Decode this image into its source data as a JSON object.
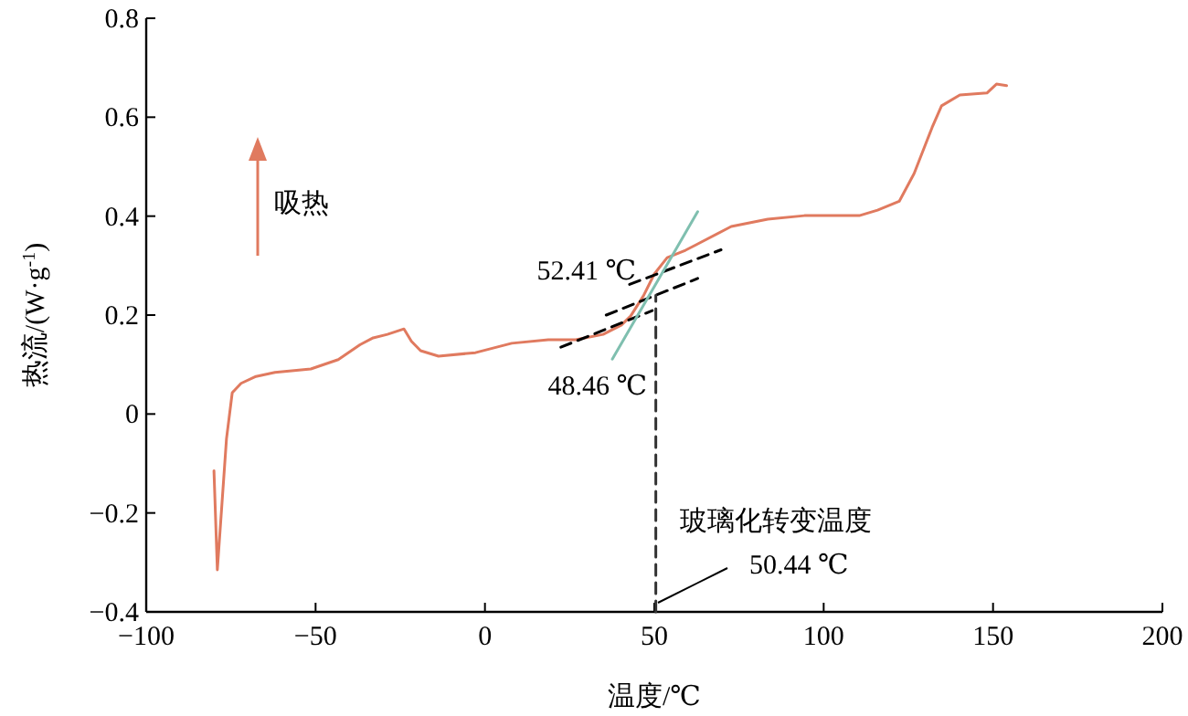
{
  "chart_data": {
    "type": "line",
    "xlabel": "温度/℃",
    "ylabel": "热流/(W·g$^{-1}$)",
    "xlim": [
      -100,
      200
    ],
    "xticks": [
      {
        "value": -100,
        "label": "−100"
      },
      {
        "value": -50,
        "label": "−50"
      },
      0,
      50,
      100,
      150,
      200
    ],
    "ylim": [
      -0.4,
      0.8
    ],
    "yticks": [
      {
        "value": -0.4,
        "label": "−0.4"
      },
      {
        "value": -0.2,
        "label": "−0.2"
      },
      0,
      0.2,
      0.4,
      0.6,
      0.8
    ],
    "grid": false,
    "marker": "none",
    "series": [
      {
        "color": "#e07a5f",
        "line_style": "solid",
        "x": [
          -80,
          -79,
          -76.3,
          -74.6,
          -72,
          -67.6,
          -62,
          -51.4,
          -43.3,
          -36.9,
          -33,
          -28.8,
          -23.9,
          -21.7,
          -19,
          -13.7,
          -2.8,
          7.9,
          18.7,
          26.8,
          34.9,
          40.3,
          43,
          46.8,
          50,
          53.8,
          59.2,
          72.7,
          83.5,
          94.3,
          110.5,
          115.9,
          122.3,
          126.7,
          132,
          134.8,
          140.2,
          148.2,
          151,
          154
        ],
        "values": [
          -0.115,
          -0.315,
          -0.05,
          0.043,
          0.062,
          0.076,
          0.084,
          0.091,
          0.11,
          0.14,
          0.154,
          0.161,
          0.172,
          0.147,
          0.128,
          0.117,
          0.124,
          0.143,
          0.15,
          0.15,
          0.161,
          0.18,
          0.198,
          0.239,
          0.283,
          0.316,
          0.331,
          0.379,
          0.394,
          0.401,
          0.401,
          0.412,
          0.43,
          0.486,
          0.579,
          0.623,
          0.645,
          0.649,
          0.667,
          0.664
        ]
      },
      {
        "color": "#000000",
        "line_style": "dashed",
        "x": [
          22.4,
          49.4
        ],
        "values": [
          0.135,
          0.209
        ]
      },
      {
        "color": "#000000",
        "line_style": "dashed",
        "x": [
          35.8,
          62.8
        ],
        "values": [
          0.2,
          0.274
        ]
      },
      {
        "color": "#000000",
        "line_style": "dashed",
        "x": [
          42.7,
          69.7
        ],
        "values": [
          0.262,
          0.332
        ]
      },
      {
        "color": "#7fbfaf",
        "line_style": "solid",
        "x": [
          37.6,
          62.8
        ],
        "values": [
          0.111,
          0.409
        ]
      },
      {
        "color": "#333333",
        "line_style": "dashed",
        "x": [
          50.44,
          50.44
        ],
        "values": [
          -0.4,
          0.24
        ]
      }
    ],
    "annotations": [
      "吸热",
      "52.41 ℃",
      "48.46 ℃",
      "玻璃化转变温度",
      "50.44 ℃"
    ]
  }
}
